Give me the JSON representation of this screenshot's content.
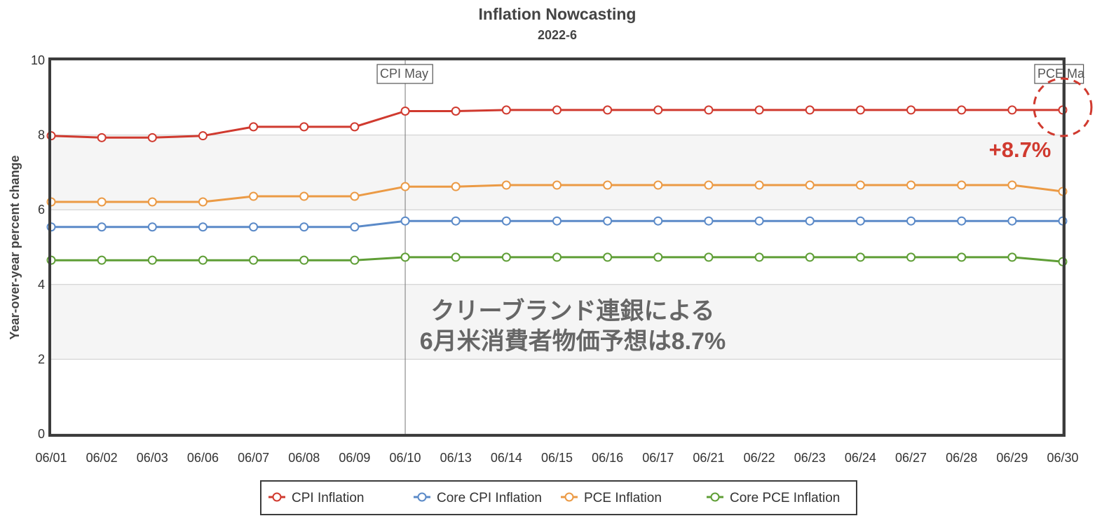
{
  "chart_data": {
    "type": "line",
    "title": "Inflation Nowcasting",
    "subtitle": "2022-6",
    "ylabel": "Year-over-year percent change",
    "ylim": [
      0,
      10
    ],
    "yticks": [
      "0",
      "2",
      "4",
      "6",
      "8",
      "10"
    ],
    "categories": [
      "06/01",
      "06/02",
      "06/03",
      "06/06",
      "06/07",
      "06/08",
      "06/09",
      "06/10",
      "06/13",
      "06/14",
      "06/15",
      "06/16",
      "06/17",
      "06/21",
      "06/22",
      "06/23",
      "06/24",
      "06/27",
      "06/28",
      "06/29",
      "06/30"
    ],
    "series": [
      {
        "name": "CPI Inflation",
        "color": "#d03a2f",
        "values": [
          7.98,
          7.93,
          7.93,
          7.98,
          8.22,
          8.22,
          8.22,
          8.64,
          8.64,
          8.67,
          8.67,
          8.67,
          8.67,
          8.67,
          8.67,
          8.67,
          8.67,
          8.67,
          8.67,
          8.67,
          8.67
        ]
      },
      {
        "name": "Core CPI Inflation",
        "color": "#5b8ac8",
        "values": [
          5.54,
          5.54,
          5.54,
          5.54,
          5.54,
          5.54,
          5.54,
          5.7,
          5.7,
          5.7,
          5.7,
          5.7,
          5.7,
          5.7,
          5.7,
          5.7,
          5.7,
          5.7,
          5.7,
          5.7,
          5.7
        ]
      },
      {
        "name": "PCE Inflation",
        "color": "#eb9a45",
        "values": [
          6.21,
          6.21,
          6.21,
          6.21,
          6.36,
          6.36,
          6.36,
          6.62,
          6.62,
          6.66,
          6.66,
          6.66,
          6.66,
          6.66,
          6.66,
          6.66,
          6.66,
          6.66,
          6.66,
          6.66,
          6.49
        ]
      },
      {
        "name": "Core PCE Inflation",
        "color": "#5f9e36",
        "values": [
          4.65,
          4.65,
          4.65,
          4.65,
          4.65,
          4.65,
          4.65,
          4.73,
          4.73,
          4.73,
          4.73,
          4.73,
          4.73,
          4.73,
          4.73,
          4.73,
          4.73,
          4.73,
          4.73,
          4.73,
          4.61
        ]
      }
    ],
    "plot_lines": [
      {
        "label": "CPI May",
        "at": "06/10"
      },
      {
        "label": "PCE Ma",
        "at": "06/30"
      }
    ],
    "plot_bands": [
      [
        2,
        4
      ],
      [
        6,
        8
      ]
    ],
    "grid": true,
    "legend_position": "bottom",
    "annotation_lines": [
      "クリーブランド連銀による",
      "6月米消費者物価予想は8.7%"
    ],
    "callout": "+8.7%"
  }
}
